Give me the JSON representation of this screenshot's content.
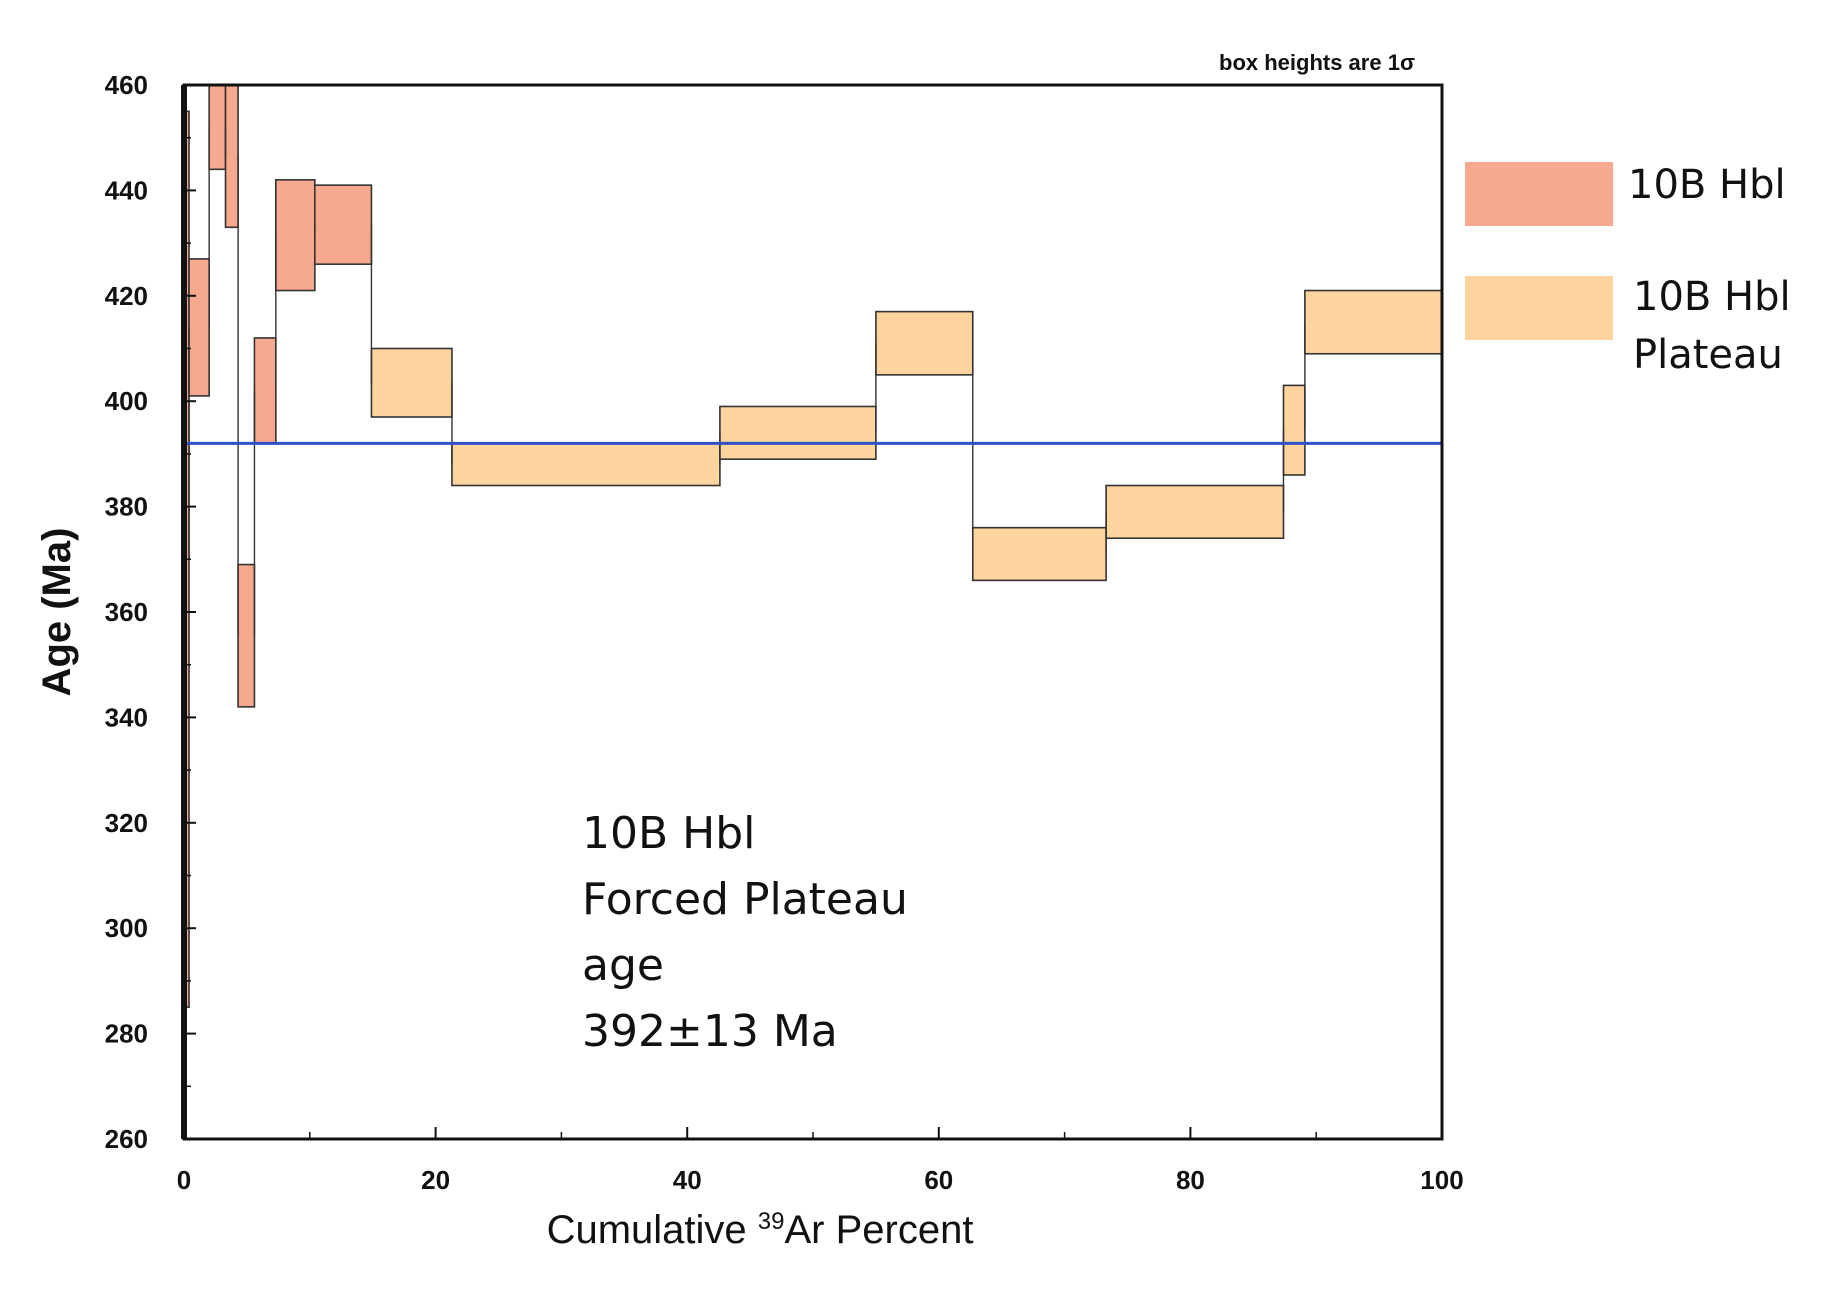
{
  "chart_data": {
    "type": "step-heating-age-spectrum",
    "note": "box heights are 1σ",
    "xlabel": {
      "prefix": "Cumulative ",
      "superscript": "39",
      "suffix": "Ar Percent"
    },
    "ylabel": "Age (Ma)",
    "xlim": [
      0,
      100
    ],
    "ylim": [
      260,
      460
    ],
    "x_ticks": [
      0,
      20,
      40,
      60,
      80,
      100
    ],
    "y_ticks": [
      260,
      280,
      300,
      320,
      340,
      360,
      380,
      400,
      420,
      440,
      460
    ],
    "plateau_age_line": 392,
    "colors": {
      "steps": "#f7a98f",
      "plateau_steps": "#fdd49e",
      "plateau_line": "#3050c8",
      "box_stroke": "#333333"
    },
    "series": [
      {
        "name": "10B Hbl",
        "steps": [
          {
            "x0": 0.0,
            "x1": 0.4,
            "y_low": 285,
            "y_high": 455
          },
          {
            "x0": 0.4,
            "x1": 2.0,
            "y_low": 401,
            "y_high": 427
          },
          {
            "x0": 2.0,
            "x1": 3.3,
            "y_low": 444,
            "y_high": 460
          },
          {
            "x0": 3.3,
            "x1": 4.3,
            "y_low": 433,
            "y_high": 460
          },
          {
            "x0": 4.3,
            "x1": 5.6,
            "y_low": 342,
            "y_high": 369
          },
          {
            "x0": 5.6,
            "x1": 7.3,
            "y_low": 392,
            "y_high": 412
          },
          {
            "x0": 7.3,
            "x1": 10.4,
            "y_low": 421,
            "y_high": 442
          },
          {
            "x0": 10.4,
            "x1": 14.9,
            "y_low": 426,
            "y_high": 441
          }
        ]
      },
      {
        "name": "10B Hbl Plateau",
        "steps": [
          {
            "x0": 14.9,
            "x1": 21.3,
            "y_low": 397,
            "y_high": 410
          },
          {
            "x0": 21.3,
            "x1": 42.6,
            "y_low": 384,
            "y_high": 392
          },
          {
            "x0": 42.6,
            "x1": 55.0,
            "y_low": 389,
            "y_high": 399
          },
          {
            "x0": 55.0,
            "x1": 62.7,
            "y_low": 405,
            "y_high": 417
          },
          {
            "x0": 62.7,
            "x1": 73.3,
            "y_low": 366,
            "y_high": 376
          },
          {
            "x0": 73.3,
            "x1": 87.4,
            "y_low": 374,
            "y_high": 384
          },
          {
            "x0": 87.4,
            "x1": 89.1,
            "y_low": 386,
            "y_high": 403
          },
          {
            "x0": 89.1,
            "x1": 100.0,
            "y_low": 409,
            "y_high": 421
          }
        ]
      }
    ],
    "legend": [
      {
        "label": "10B Hbl",
        "color": "#f7a98f"
      },
      {
        "label_lines": [
          "10B Hbl",
          "Plateau"
        ],
        "color": "#fdd49e"
      }
    ],
    "annotation": [
      "10B Hbl",
      "Forced Plateau",
      "age",
      "392±13 Ma"
    ]
  }
}
